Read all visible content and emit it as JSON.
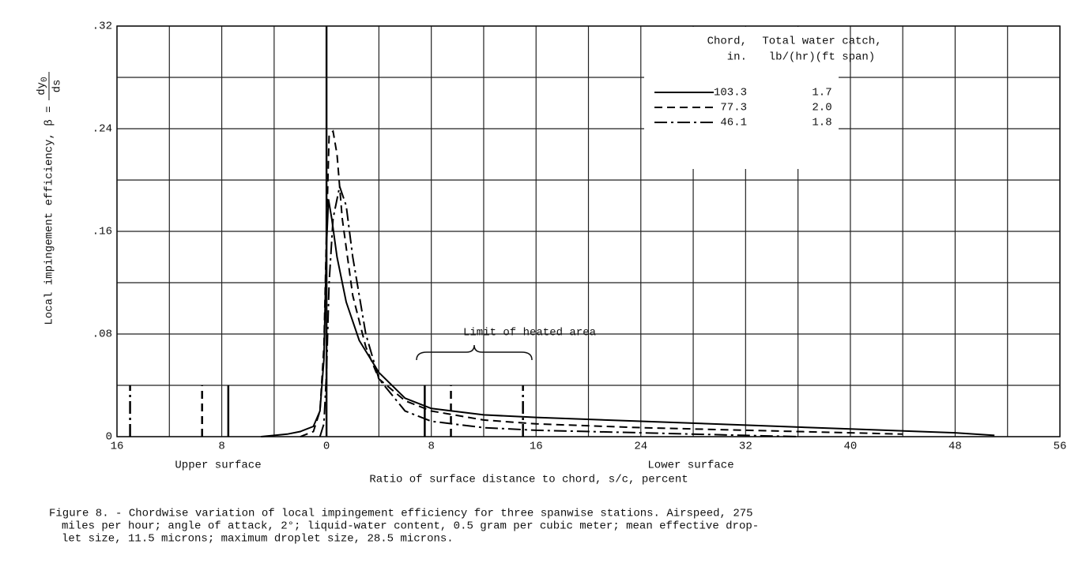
{
  "chart_data": {
    "type": "line",
    "y_label": "Local impingement efficiency, β =",
    "y_label_fraction": {
      "numerator": "dy",
      "subscript": "0",
      "denominator": "ds"
    },
    "x_label": "Ratio of surface distance to chord, s/c, percent",
    "annotations": {
      "upper": "Upper surface",
      "lower": "Lower surface",
      "heated": "Limit of heated area"
    },
    "legend_headers": {
      "chord": [
        "Chord,",
        "in."
      ],
      "catch": [
        "Total water catch,",
        "lb/(hr)(ft span)"
      ]
    },
    "xlim": [
      -16,
      56
    ],
    "xticks": [
      {
        "value": -16,
        "label": "16"
      },
      {
        "value": -8,
        "label": "8"
      },
      0,
      8,
      16,
      24,
      32,
      40,
      48,
      56
    ],
    "ylim": [
      0,
      0.32
    ],
    "yticks": [
      0,
      {
        "value": 0.08,
        "label": ".08"
      },
      {
        "value": 0.16,
        "label": ".16"
      },
      {
        "value": 0.24,
        "label": ".24"
      },
      {
        "value": 0.32,
        "label": ".32"
      }
    ],
    "grid": true,
    "series": [
      {
        "name": "103.3",
        "water_catch": "1.7",
        "color": "#000000",
        "dash": "solid",
        "heated_limits": [
          -7.5,
          7.5
        ],
        "x": [
          -5,
          -3,
          -2,
          -1,
          -0.5,
          -0.2,
          0,
          0.15,
          0.4,
          0.8,
          1.5,
          2.5,
          4,
          6,
          8,
          12,
          16,
          24,
          32,
          40,
          48,
          51
        ],
        "values": [
          0,
          0.002,
          0.004,
          0.008,
          0.02,
          0.06,
          0.15,
          0.185,
          0.17,
          0.14,
          0.105,
          0.075,
          0.05,
          0.03,
          0.022,
          0.017,
          0.015,
          0.012,
          0.009,
          0.006,
          0.003,
          0.001
        ]
      },
      {
        "name": "77.3",
        "water_catch": "2.0",
        "color": "#000000",
        "dash": "dashed",
        "heated_limits": [
          -9.5,
          9.5
        ],
        "x": [
          -2,
          -1,
          -0.5,
          -0.2,
          0,
          0.2,
          0.5,
          0.8,
          1.2,
          2,
          3,
          4,
          6,
          8,
          12,
          16,
          24,
          32,
          40,
          44
        ],
        "values": [
          0,
          0.004,
          0.02,
          0.07,
          0.16,
          0.235,
          0.238,
          0.22,
          0.17,
          0.11,
          0.07,
          0.045,
          0.028,
          0.02,
          0.013,
          0.01,
          0.007,
          0.005,
          0.003,
          0.002
        ]
      },
      {
        "name": "46.1",
        "water_catch": "1.8",
        "color": "#000000",
        "dash": "dash-dot",
        "heated_limits": [
          -15,
          15
        ],
        "x": [
          -0.5,
          -0.2,
          0,
          0.2,
          0.5,
          1,
          1.5,
          2,
          3,
          4,
          6,
          8,
          12,
          16,
          24,
          32,
          36
        ],
        "values": [
          0,
          0.01,
          0.05,
          0.12,
          0.17,
          0.195,
          0.18,
          0.14,
          0.08,
          0.045,
          0.02,
          0.012,
          0.007,
          0.005,
          0.003,
          0.001,
          0
        ]
      }
    ],
    "caption": [
      "Figure 8. - Chordwise variation of local impingement efficiency for three spanwise stations.  Airspeed, 275",
      "miles per hour; angle of attack, 2°; liquid-water content, 0.5 gram per cubic meter; mean effective drop-",
      "let size, 11.5 microns; maximum droplet size, 28.5 microns."
    ]
  }
}
